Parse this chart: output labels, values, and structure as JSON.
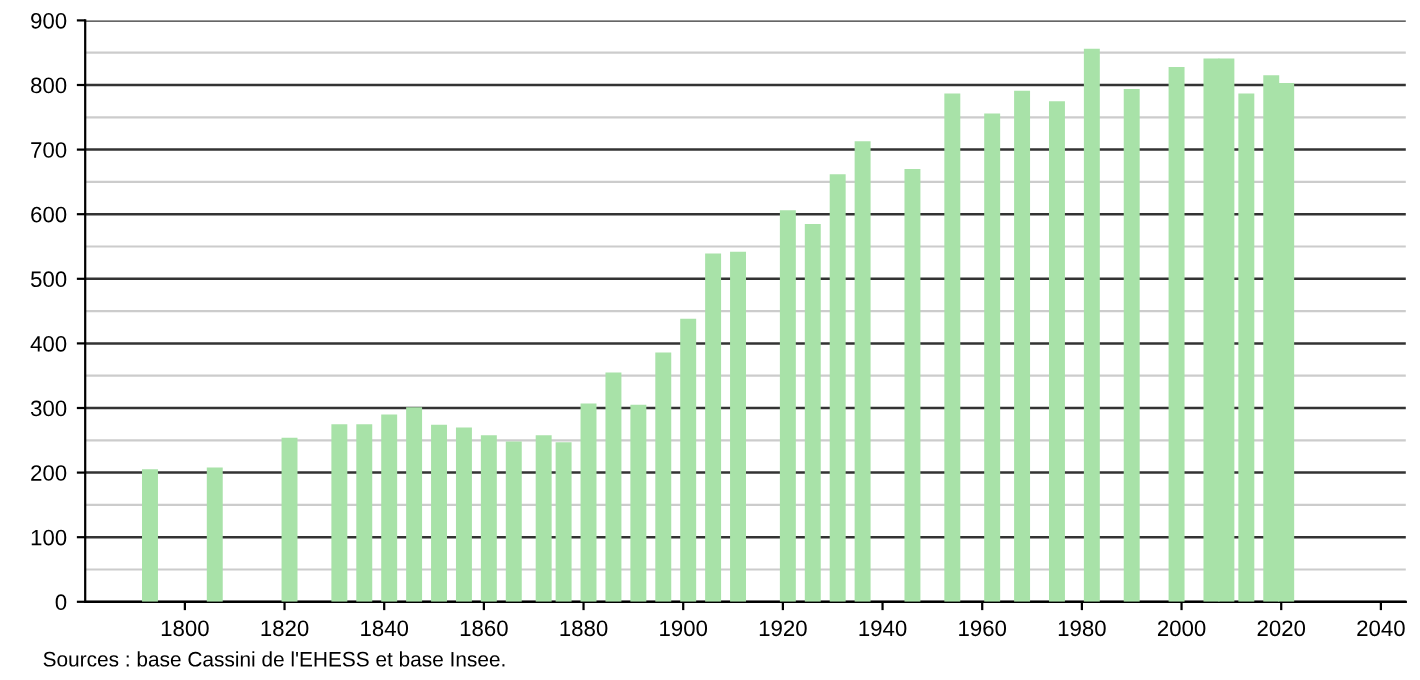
{
  "chart_data": {
    "type": "bar",
    "x": [
      1793,
      1806,
      1821,
      1831,
      1836,
      1841,
      1846,
      1851,
      1856,
      1861,
      1866,
      1872,
      1876,
      1881,
      1886,
      1891,
      1896,
      1901,
      1906,
      1911,
      1921,
      1926,
      1931,
      1936,
      1946,
      1954,
      1962,
      1968,
      1975,
      1982,
      1990,
      1999,
      2006,
      2009,
      2013,
      2018,
      2021
    ],
    "values": [
      205,
      208,
      254,
      275,
      275,
      290,
      301,
      274,
      270,
      258,
      248,
      258,
      247,
      307,
      355,
      305,
      386,
      438,
      539,
      542,
      606,
      585,
      662,
      713,
      670,
      787,
      756,
      791,
      775,
      856,
      794,
      828,
      841,
      841,
      787,
      815,
      803
    ],
    "color": "#a8e2a8",
    "xlim": [
      1780,
      2045
    ],
    "xticks": [
      1800,
      1820,
      1840,
      1860,
      1880,
      1900,
      1920,
      1940,
      1960,
      1980,
      2000,
      2020,
      2040
    ],
    "ylim": [
      0,
      900
    ],
    "yticks": [
      0,
      100,
      200,
      300,
      400,
      500,
      600,
      700,
      800,
      900
    ],
    "grid": "y",
    "annotations": [
      "Sources : base Cassini de l'EHESS et base Insee."
    ]
  }
}
